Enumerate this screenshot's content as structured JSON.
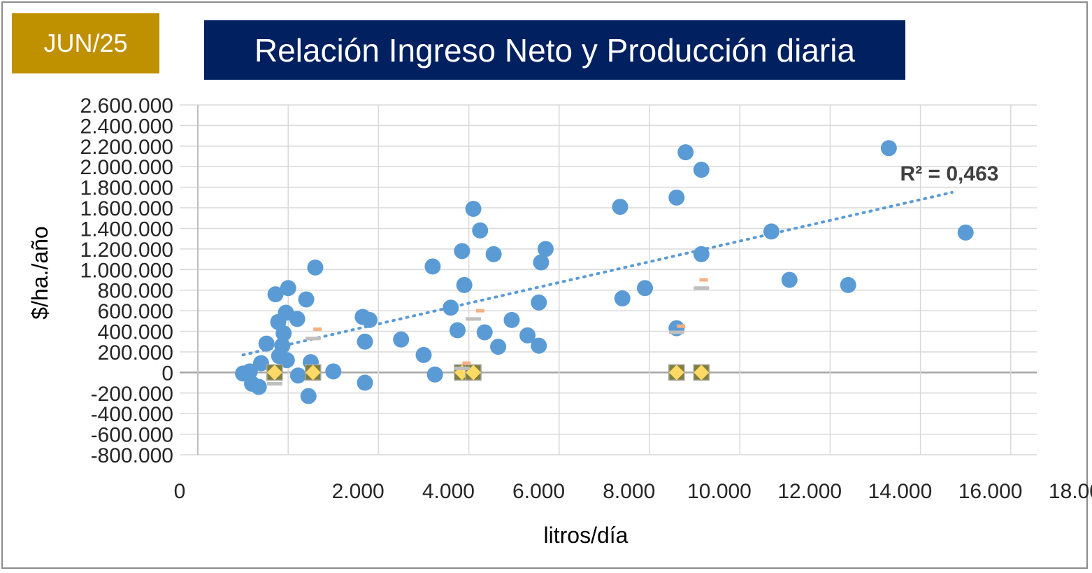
{
  "badge": "JUN/25",
  "chart_data": {
    "type": "scatter",
    "title": "Relación Ingreso Neto y Producción diaria",
    "xlabel": "litros/día",
    "ylabel": "$/ha./año",
    "xlim": [
      0,
      18000
    ],
    "ylim": [
      -800000,
      2600000
    ],
    "x_ticks": [
      "0",
      "2.000",
      "4.000",
      "6.000",
      "8.000",
      "10.000",
      "12.000",
      "14.000",
      "16.000",
      "18.000"
    ],
    "y_ticks": [
      "2.600.000",
      "2.400.000",
      "2.200.000",
      "2.000.000",
      "1.800.000",
      "1.600.000",
      "1.400.000",
      "1.200.000",
      "1.000.000",
      "800.000",
      "600.000",
      "400.000",
      "200.000",
      "0",
      "-200.000",
      "-400.000",
      "-600.000",
      "-800.000"
    ],
    "grid": true,
    "trendline": {
      "type": "linear",
      "x": [
        1000,
        16700
      ],
      "y": [
        170000,
        1750000
      ]
    },
    "r2_label": "R² = 0,463",
    "colors": {
      "points": "#5b9bd5",
      "trend": "#5b9bd5",
      "diamond": "#ffd966",
      "diamond_edge": "#a5a5a5",
      "dash_gray": "#bfbfbf",
      "dash_orange": "#f4b183"
    },
    "series": [
      {
        "marker": "circle",
        "points": [
          [
            1000,
            -10000
          ],
          [
            1150,
            10000
          ],
          [
            1200,
            -110000
          ],
          [
            1350,
            -140000
          ],
          [
            1400,
            90000
          ],
          [
            1520,
            280000
          ],
          [
            1720,
            760000
          ],
          [
            1780,
            490000
          ],
          [
            1800,
            160000
          ],
          [
            1870,
            260000
          ],
          [
            1900,
            380000
          ],
          [
            1950,
            580000
          ],
          [
            1970,
            120000
          ],
          [
            2000,
            820000
          ],
          [
            2200,
            520000
          ],
          [
            2220,
            -30000
          ],
          [
            2400,
            710000
          ],
          [
            2450,
            -230000
          ],
          [
            2500,
            100000
          ],
          [
            2600,
            1020000
          ],
          [
            3000,
            10000
          ],
          [
            3650,
            540000
          ],
          [
            3700,
            300000
          ],
          [
            3700,
            -100000
          ],
          [
            3800,
            510000
          ],
          [
            4500,
            320000
          ],
          [
            5000,
            170000
          ],
          [
            5200,
            1030000
          ],
          [
            5250,
            -20000
          ],
          [
            5600,
            630000
          ],
          [
            5750,
            410000
          ],
          [
            5850,
            1180000
          ],
          [
            5900,
            850000
          ],
          [
            6100,
            1590000
          ],
          [
            6250,
            1380000
          ],
          [
            6350,
            390000
          ],
          [
            6550,
            1150000
          ],
          [
            6650,
            250000
          ],
          [
            6950,
            510000
          ],
          [
            7300,
            360000
          ],
          [
            7550,
            260000
          ],
          [
            7550,
            680000
          ],
          [
            7600,
            1070000
          ],
          [
            7700,
            1200000
          ],
          [
            9350,
            1610000
          ],
          [
            9400,
            720000
          ],
          [
            9900,
            820000
          ],
          [
            10600,
            430000
          ],
          [
            10600,
            1700000
          ],
          [
            10800,
            2140000
          ],
          [
            11150,
            1150000
          ],
          [
            11150,
            1970000
          ],
          [
            12700,
            1370000
          ],
          [
            13100,
            900000
          ],
          [
            14400,
            850000
          ],
          [
            15300,
            2180000
          ],
          [
            17000,
            1360000
          ]
        ]
      },
      {
        "marker": "diamond",
        "points": [
          [
            1700,
            0
          ],
          [
            2550,
            0
          ],
          [
            5850,
            0
          ],
          [
            6100,
            0
          ],
          [
            10600,
            0
          ],
          [
            11150,
            0
          ]
        ]
      },
      {
        "marker": "dash-gray",
        "points": [
          [
            1700,
            -110000
          ],
          [
            2550,
            330000
          ],
          [
            5850,
            40000
          ],
          [
            6100,
            520000
          ],
          [
            10600,
            390000
          ],
          [
            11150,
            820000
          ]
        ]
      },
      {
        "marker": "dash-orange",
        "points": [
          [
            2650,
            420000
          ],
          [
            5950,
            90000
          ],
          [
            6250,
            600000
          ],
          [
            10700,
            450000
          ],
          [
            11200,
            900000
          ]
        ]
      }
    ]
  }
}
